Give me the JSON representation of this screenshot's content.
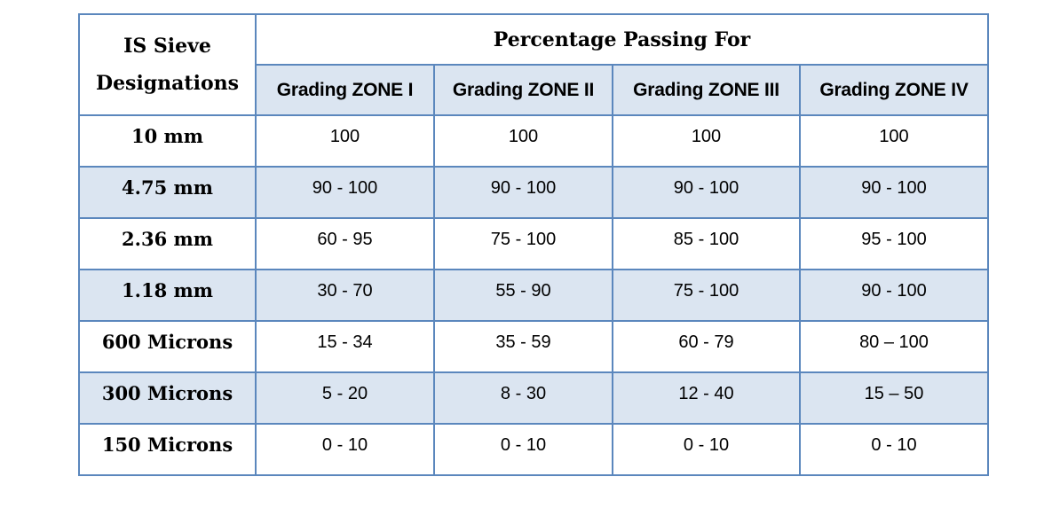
{
  "header": {
    "sieve_line1": "IS Sieve",
    "sieve_line2": "Designations",
    "percentage_passing": "Percentage Passing For",
    "zones": [
      "Grading ZONE I",
      "Grading ZONE II",
      "Grading ZONE III",
      "Grading ZONE IV"
    ]
  },
  "rows": [
    {
      "sieve": "10 mm",
      "values": [
        "100",
        "100",
        "100",
        "100"
      ]
    },
    {
      "sieve": "4.75 mm",
      "values": [
        "90 - 100",
        "90 - 100",
        "90 - 100",
        "90 - 100"
      ]
    },
    {
      "sieve": "2.36 mm",
      "values": [
        "60 - 95",
        "75 - 100",
        "85 - 100",
        "95 - 100"
      ]
    },
    {
      "sieve": "1.18 mm",
      "values": [
        "30 - 70",
        "55 - 90",
        "75 - 100",
        "90 - 100"
      ]
    },
    {
      "sieve": "600 Microns",
      "values": [
        "15 - 34",
        "35 - 59",
        "60 - 79",
        "80 – 100"
      ]
    },
    {
      "sieve": "300 Microns",
      "values": [
        "5 - 20",
        "8 - 30",
        "12 - 40",
        "15 – 50"
      ]
    },
    {
      "sieve": "150 Microns",
      "values": [
        "0 - 10",
        "0 - 10",
        "0 - 10",
        "0 - 10"
      ]
    }
  ],
  "colors": {
    "border": "#5b87bd",
    "shade": "#dbe5f1"
  }
}
